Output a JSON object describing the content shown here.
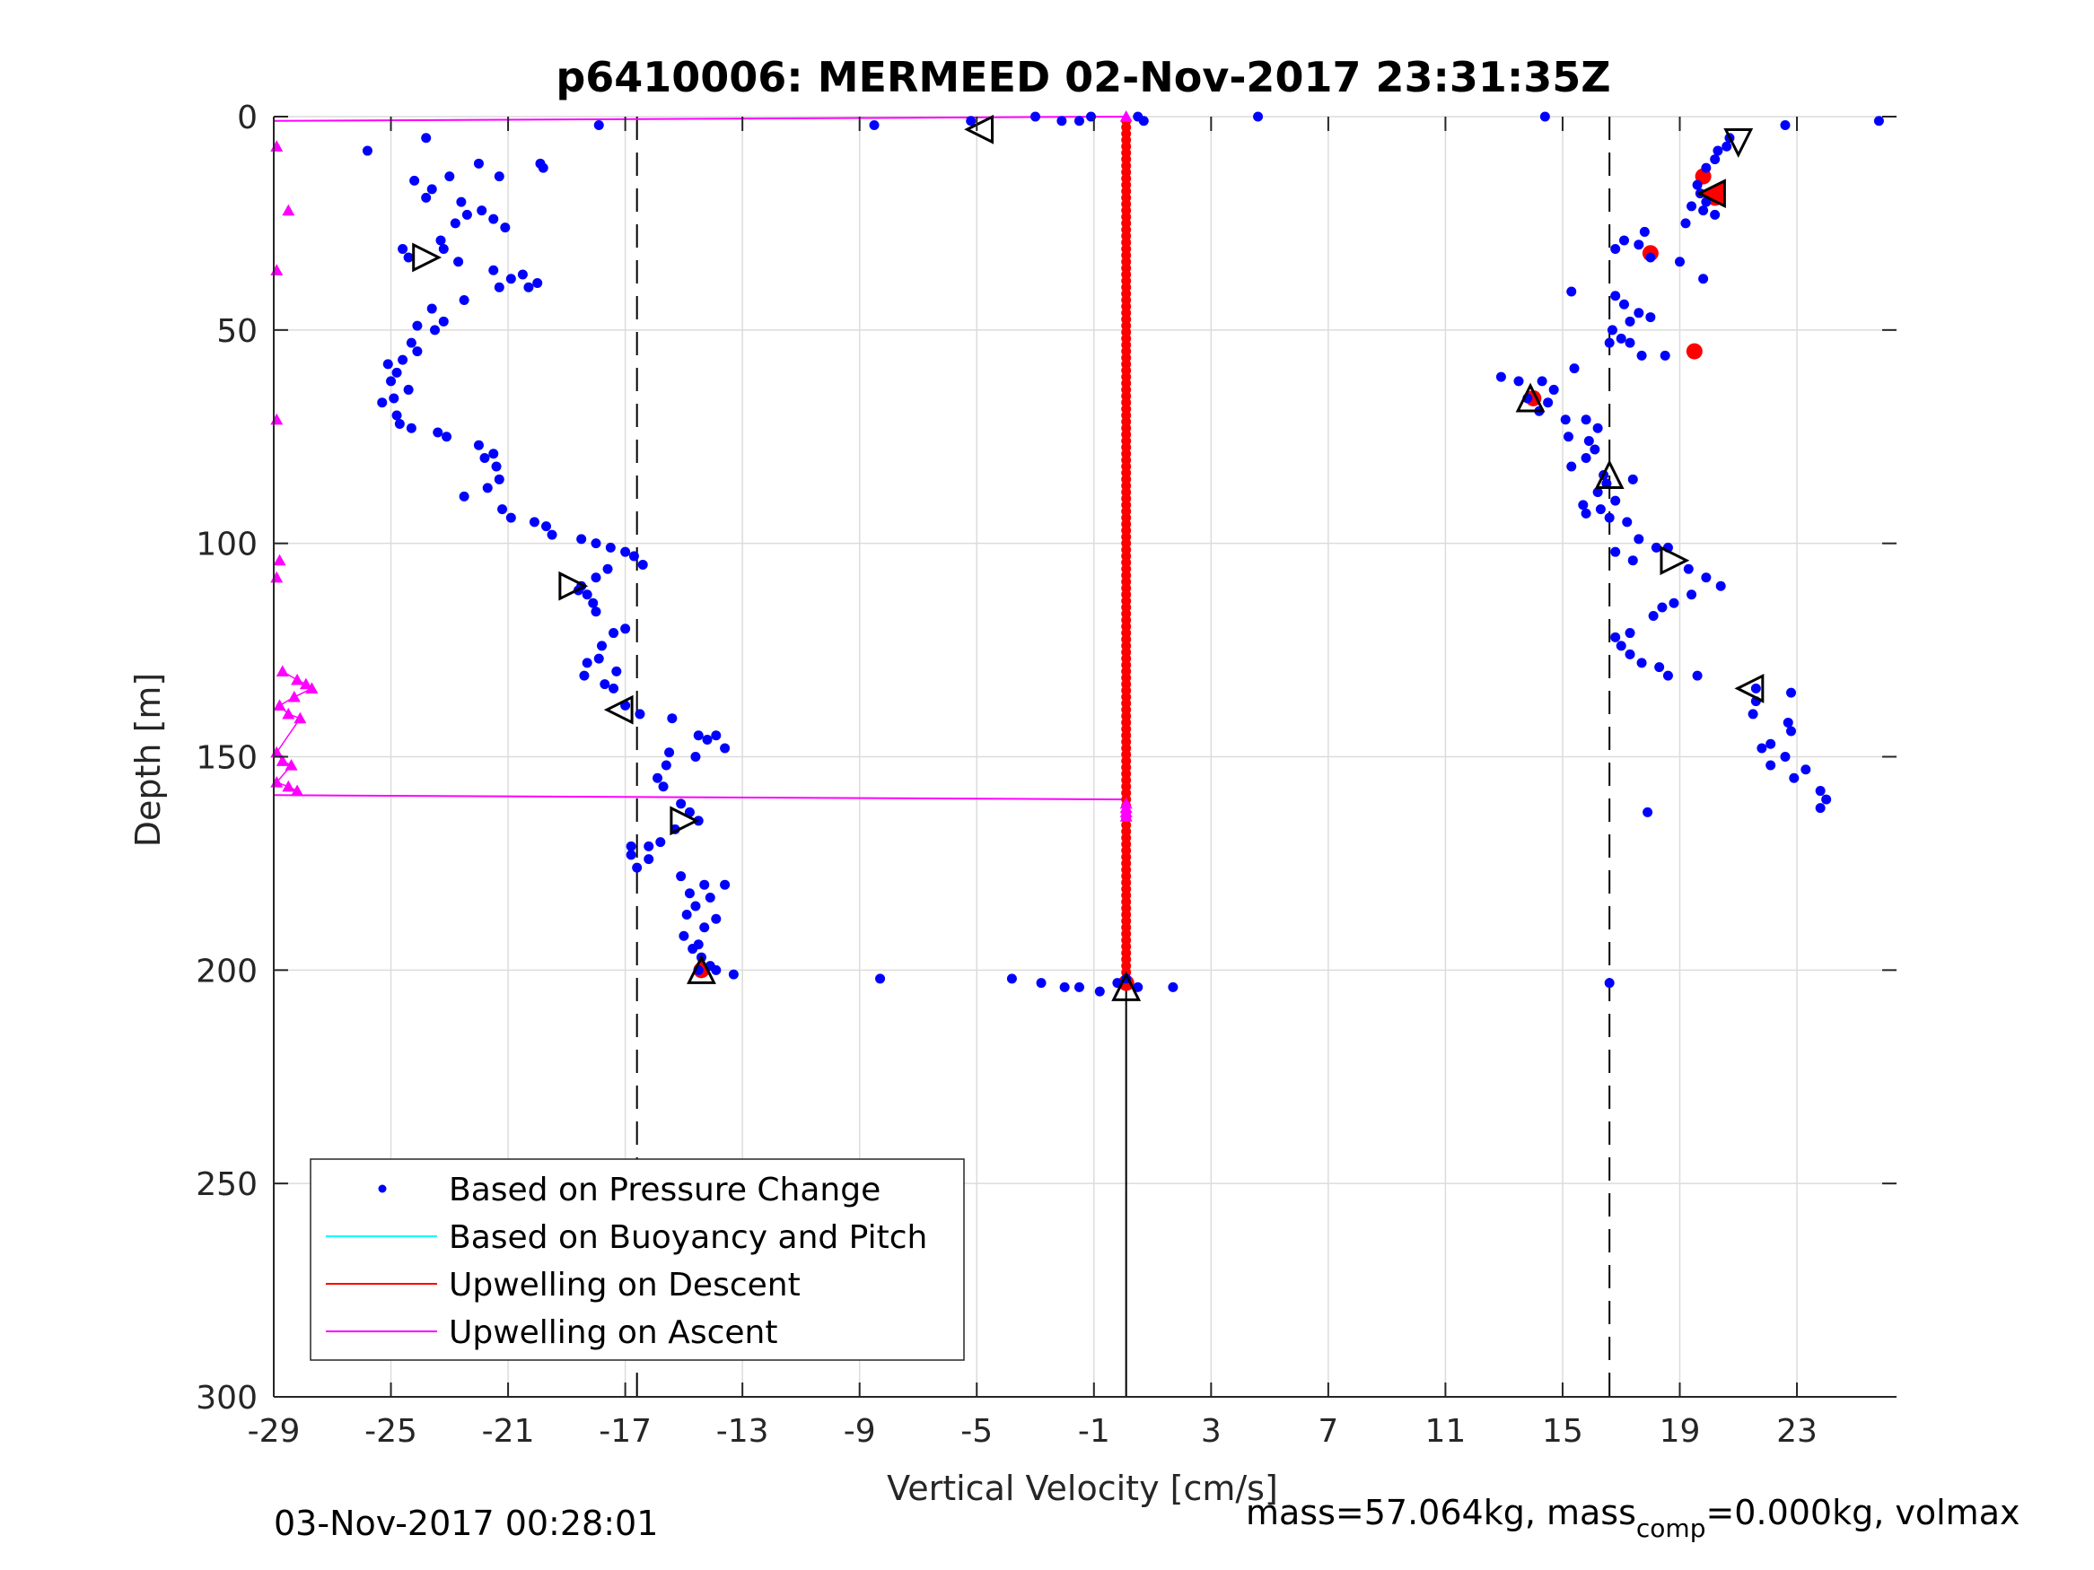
{
  "chart_data": {
    "type": "scatter",
    "title": "p6410006: MERMEED 02-Nov-2017 23:31:35Z",
    "xlabel": "Vertical Velocity [cm/s]",
    "ylabel": "Depth [m]",
    "xlim": [
      -29,
      26.4
    ],
    "ylim": [
      300,
      0
    ],
    "y_reversed": true,
    "grid": true,
    "xticks": [
      "-29",
      "-25",
      "-21",
      "-17",
      "-13",
      "-9",
      "-5",
      "-1",
      "3",
      "7",
      "11",
      "15",
      "19",
      "23"
    ],
    "xtick_values": [
      -29,
      -25,
      -21,
      -17,
      -13,
      -9,
      -5,
      -1,
      3,
      7,
      11,
      15,
      19,
      23
    ],
    "yticks": [
      "0",
      "50",
      "100",
      "150",
      "200",
      "250",
      "300"
    ],
    "ytick_values": [
      0,
      50,
      100,
      150,
      200,
      250,
      300
    ],
    "reference_lines": {
      "dashed_x": [
        -16.6,
        16.6
      ],
      "solid_x": 0.1,
      "solid_y_from": 204,
      "solid_y_to": 300
    },
    "legend": {
      "position": "bottom-left",
      "entries": [
        {
          "label": "Based on Pressure Change",
          "color": "#0000ff",
          "marker": "dot"
        },
        {
          "label": "Based on Buoyancy and Pitch",
          "color": "#00ffff",
          "marker": "line"
        },
        {
          "label": "Upwelling on Descent",
          "color": "#ff0000",
          "marker": "line"
        },
        {
          "label": "Upwelling on Ascent",
          "color": "#ff00ff",
          "marker": "line"
        }
      ]
    },
    "series": [
      {
        "name": "Based on Pressure Change",
        "color": "#0000ff",
        "points": [
          [
            -23.8,
            5
          ],
          [
            -25.8,
            8
          ],
          [
            -24.2,
            15
          ],
          [
            -23.6,
            17
          ],
          [
            -23.8,
            19
          ],
          [
            -23,
            14
          ],
          [
            -22,
            11
          ],
          [
            -21.3,
            14
          ],
          [
            -19.9,
            11
          ],
          [
            -19.8,
            12
          ],
          [
            -22.6,
            20
          ],
          [
            -22.4,
            23
          ],
          [
            -21.9,
            22
          ],
          [
            -21.5,
            24
          ],
          [
            -21.1,
            26
          ],
          [
            -22.8,
            25
          ],
          [
            -23.3,
            29
          ],
          [
            -23.2,
            31
          ],
          [
            -24.6,
            31
          ],
          [
            -24.4,
            33
          ],
          [
            -22.7,
            34
          ],
          [
            -21.5,
            36
          ],
          [
            -20.9,
            38
          ],
          [
            -20.5,
            37
          ],
          [
            -20,
            39
          ],
          [
            -20.3,
            40
          ],
          [
            -21.3,
            40
          ],
          [
            -22.5,
            43
          ],
          [
            -23.6,
            45
          ],
          [
            -23.2,
            48
          ],
          [
            -24.1,
            49
          ],
          [
            -23.5,
            50
          ],
          [
            -24.3,
            53
          ],
          [
            -24.1,
            55
          ],
          [
            -24.6,
            57
          ],
          [
            -25.1,
            58
          ],
          [
            -24.8,
            60
          ],
          [
            -25,
            62
          ],
          [
            -24.4,
            64
          ],
          [
            -24.9,
            66
          ],
          [
            -25.3,
            67
          ],
          [
            -24.8,
            70
          ],
          [
            -24.7,
            72
          ],
          [
            -24.3,
            73
          ],
          [
            -23.4,
            74
          ],
          [
            -23.1,
            75
          ],
          [
            -22,
            77
          ],
          [
            -21.5,
            79
          ],
          [
            -21.8,
            80
          ],
          [
            -21.4,
            82
          ],
          [
            -21.3,
            85
          ],
          [
            -21.7,
            87
          ],
          [
            -22.5,
            89
          ],
          [
            -21.2,
            92
          ],
          [
            -20.9,
            94
          ],
          [
            -20.1,
            95
          ],
          [
            -19.7,
            96
          ],
          [
            -19.5,
            98
          ],
          [
            -18.5,
            99
          ],
          [
            -18,
            100
          ],
          [
            -17.5,
            101
          ],
          [
            -17,
            102
          ],
          [
            -16.7,
            103
          ],
          [
            -16.4,
            105
          ],
          [
            -18,
            108
          ],
          [
            -18.5,
            110
          ],
          [
            -17.6,
            106
          ],
          [
            -18.3,
            112
          ],
          [
            -18.6,
            111
          ],
          [
            -18.1,
            114
          ],
          [
            -18,
            116
          ],
          [
            -17,
            120
          ],
          [
            -17.4,
            121
          ],
          [
            -17.8,
            124
          ],
          [
            -17.9,
            127
          ],
          [
            -18.3,
            128
          ],
          [
            -17.3,
            130
          ],
          [
            -18.4,
            131
          ],
          [
            -17.7,
            133
          ],
          [
            -17.4,
            134
          ],
          [
            -17,
            138
          ],
          [
            -16.5,
            140
          ],
          [
            -15.4,
            141
          ],
          [
            -14.5,
            145
          ],
          [
            -14.2,
            146
          ],
          [
            -13.9,
            145
          ],
          [
            -13.6,
            148
          ],
          [
            -14.6,
            150
          ],
          [
            -15.5,
            149
          ],
          [
            -15.6,
            152
          ],
          [
            -15.9,
            155
          ],
          [
            -15.7,
            157
          ],
          [
            -15.1,
            161
          ],
          [
            -14.8,
            163
          ],
          [
            -14.5,
            165
          ],
          [
            -15.3,
            167
          ],
          [
            -15.8,
            170
          ],
          [
            -16.2,
            171
          ],
          [
            -16.8,
            171
          ],
          [
            -16.8,
            173
          ],
          [
            -16.2,
            174
          ],
          [
            -16.6,
            176
          ],
          [
            -15.1,
            178
          ],
          [
            -14.3,
            180
          ],
          [
            -13.6,
            180
          ],
          [
            -14.8,
            182
          ],
          [
            -14.1,
            183
          ],
          [
            -14.6,
            185
          ],
          [
            -14.9,
            187
          ],
          [
            -13.9,
            188
          ],
          [
            -14.3,
            190
          ],
          [
            -15,
            192
          ],
          [
            -14.5,
            194
          ],
          [
            -14.7,
            195
          ],
          [
            -14.4,
            197
          ],
          [
            -14.1,
            199
          ],
          [
            -13.9,
            200
          ],
          [
            -14.5,
            200
          ],
          [
            -13.3,
            201
          ],
          [
            -8.3,
            202
          ],
          [
            -17.9,
            2
          ],
          [
            -8.5,
            2
          ],
          [
            -5.2,
            1
          ],
          [
            -3,
            0
          ],
          [
            -2.1,
            1
          ],
          [
            -1.5,
            1
          ],
          [
            -1.1,
            0
          ],
          [
            0.5,
            0
          ],
          [
            0.7,
            1
          ],
          [
            4.6,
            0
          ],
          [
            14.4,
            0
          ],
          [
            22.6,
            2
          ],
          [
            25.8,
            1
          ],
          [
            -3.8,
            202
          ],
          [
            -2.8,
            203
          ],
          [
            -2,
            204
          ],
          [
            -1.5,
            204
          ],
          [
            -0.8,
            205
          ],
          [
            -0.2,
            203
          ],
          [
            0.1,
            202
          ],
          [
            0.5,
            204
          ],
          [
            1.7,
            204
          ],
          [
            16.6,
            203
          ],
          [
            17.9,
            163
          ],
          [
            20.7,
            5
          ],
          [
            20.6,
            7
          ],
          [
            20.3,
            8
          ],
          [
            20.2,
            10
          ],
          [
            19.9,
            12
          ],
          [
            19.6,
            16
          ],
          [
            19.7,
            18
          ],
          [
            19.9,
            20
          ],
          [
            20.2,
            23
          ],
          [
            19.4,
            21
          ],
          [
            19.8,
            22
          ],
          [
            19.2,
            25
          ],
          [
            17.8,
            27
          ],
          [
            17.6,
            30
          ],
          [
            17.1,
            29
          ],
          [
            16.8,
            31
          ],
          [
            18,
            33
          ],
          [
            19,
            34
          ],
          [
            19.8,
            38
          ],
          [
            15.3,
            41
          ],
          [
            16.8,
            42
          ],
          [
            17.1,
            44
          ],
          [
            17.6,
            46
          ],
          [
            17.3,
            48
          ],
          [
            18,
            47
          ],
          [
            16.7,
            50
          ],
          [
            17,
            52
          ],
          [
            16.6,
            53
          ],
          [
            17.3,
            53
          ],
          [
            17.7,
            56
          ],
          [
            18.5,
            56
          ],
          [
            12.9,
            61
          ],
          [
            13.5,
            62
          ],
          [
            14.3,
            62
          ],
          [
            14.7,
            64
          ],
          [
            13.8,
            66
          ],
          [
            14.5,
            67
          ],
          [
            15.4,
            59
          ],
          [
            14.2,
            69
          ],
          [
            15.1,
            71
          ],
          [
            15.8,
            71
          ],
          [
            16.2,
            73
          ],
          [
            15.9,
            76
          ],
          [
            15.2,
            75
          ],
          [
            16.1,
            78
          ],
          [
            15.8,
            80
          ],
          [
            15.3,
            82
          ],
          [
            16.4,
            84
          ],
          [
            16.5,
            86
          ],
          [
            17.4,
            85
          ],
          [
            16.2,
            88
          ],
          [
            16.8,
            90
          ],
          [
            15.7,
            91
          ],
          [
            16.3,
            92
          ],
          [
            15.8,
            93
          ],
          [
            16.6,
            94
          ],
          [
            17.2,
            95
          ],
          [
            17.6,
            99
          ],
          [
            16.8,
            102
          ],
          [
            17.4,
            104
          ],
          [
            18.2,
            101
          ],
          [
            18.6,
            101
          ],
          [
            19.3,
            106
          ],
          [
            19.9,
            108
          ],
          [
            20.4,
            110
          ],
          [
            19.4,
            112
          ],
          [
            18.8,
            114
          ],
          [
            18.4,
            115
          ],
          [
            18.1,
            117
          ],
          [
            17.3,
            121
          ],
          [
            16.8,
            122
          ],
          [
            17.3,
            126
          ],
          [
            17,
            124
          ],
          [
            17.7,
            128
          ],
          [
            18.3,
            129
          ],
          [
            18.6,
            131
          ],
          [
            19.6,
            131
          ],
          [
            21.6,
            134
          ],
          [
            22.8,
            135
          ],
          [
            21.6,
            137
          ],
          [
            21.5,
            140
          ],
          [
            22.7,
            142
          ],
          [
            22.8,
            144
          ],
          [
            22.1,
            147
          ],
          [
            21.8,
            148
          ],
          [
            22.6,
            150
          ],
          [
            22.1,
            152
          ],
          [
            23.3,
            153
          ],
          [
            22.9,
            155
          ],
          [
            23.8,
            158
          ],
          [
            24,
            160
          ],
          [
            23.8,
            162
          ]
        ]
      },
      {
        "name": "Upwelling on Descent",
        "color": "#ff0000",
        "points": [
          [
            19.8,
            14
          ],
          [
            20.2,
            19
          ],
          [
            18,
            32
          ],
          [
            19.5,
            55
          ],
          [
            14,
            66
          ],
          [
            -14.4,
            200
          ],
          [
            0.1,
            203
          ]
        ],
        "vertical_segment": {
          "x": 0.1,
          "y_from": 1,
          "y_to": 203
        }
      },
      {
        "name": "Upwelling on Ascent",
        "color": "#ff00ff",
        "points": [
          [
            -28.9,
            7
          ],
          [
            -28.5,
            22
          ],
          [
            -28.9,
            36
          ],
          [
            -28.9,
            71
          ],
          [
            -28.8,
            104
          ],
          [
            -28.9,
            108
          ],
          [
            -28.7,
            130
          ],
          [
            -28.2,
            132
          ],
          [
            -27.9,
            133
          ],
          [
            -27.7,
            134
          ],
          [
            -28.3,
            136
          ],
          [
            -28.8,
            138
          ],
          [
            -28.5,
            140
          ],
          [
            -28.1,
            141
          ],
          [
            -28.9,
            149
          ],
          [
            -28.7,
            151
          ],
          [
            -28.4,
            152
          ],
          [
            -28.9,
            156
          ],
          [
            -28.5,
            157
          ],
          [
            -28.2,
            158
          ],
          [
            0.1,
            0
          ],
          [
            0.1,
            161
          ],
          [
            0.1,
            162
          ],
          [
            0.1,
            163
          ],
          [
            0.1,
            164
          ]
        ],
        "lines": [
          [
            [
              -29,
              1
            ],
            [
              0.1,
              0
            ]
          ],
          [
            [
              -29,
              159
            ],
            [
              0.1,
              160
            ]
          ]
        ]
      }
    ],
    "triangle_markers": [
      {
        "x": -4.9,
        "y": 3,
        "dir": "left"
      },
      {
        "x": 21,
        "y": 6,
        "dir": "down"
      },
      {
        "x": 20.1,
        "y": 18,
        "dir": "left",
        "fill": "#ff0000"
      },
      {
        "x": -23.8,
        "y": 33,
        "dir": "right"
      },
      {
        "x": 13.9,
        "y": 66,
        "dir": "up"
      },
      {
        "x": 16.6,
        "y": 84,
        "dir": "up"
      },
      {
        "x": 18.8,
        "y": 104,
        "dir": "right"
      },
      {
        "x": -18.8,
        "y": 110,
        "dir": "right"
      },
      {
        "x": 21.4,
        "y": 134,
        "dir": "left"
      },
      {
        "x": -17.2,
        "y": 139,
        "dir": "left"
      },
      {
        "x": -15,
        "y": 165,
        "dir": "right"
      },
      {
        "x": -14.4,
        "y": 200,
        "dir": "up"
      },
      {
        "x": 0.1,
        "y": 204,
        "dir": "up"
      }
    ]
  },
  "footer": {
    "timestamp": "03-Nov-2017 00:28:01",
    "mass_text": "mass=57.064kg, mass",
    "sub_text": "comp",
    "rest_text": "=0.000kg, volmax"
  }
}
